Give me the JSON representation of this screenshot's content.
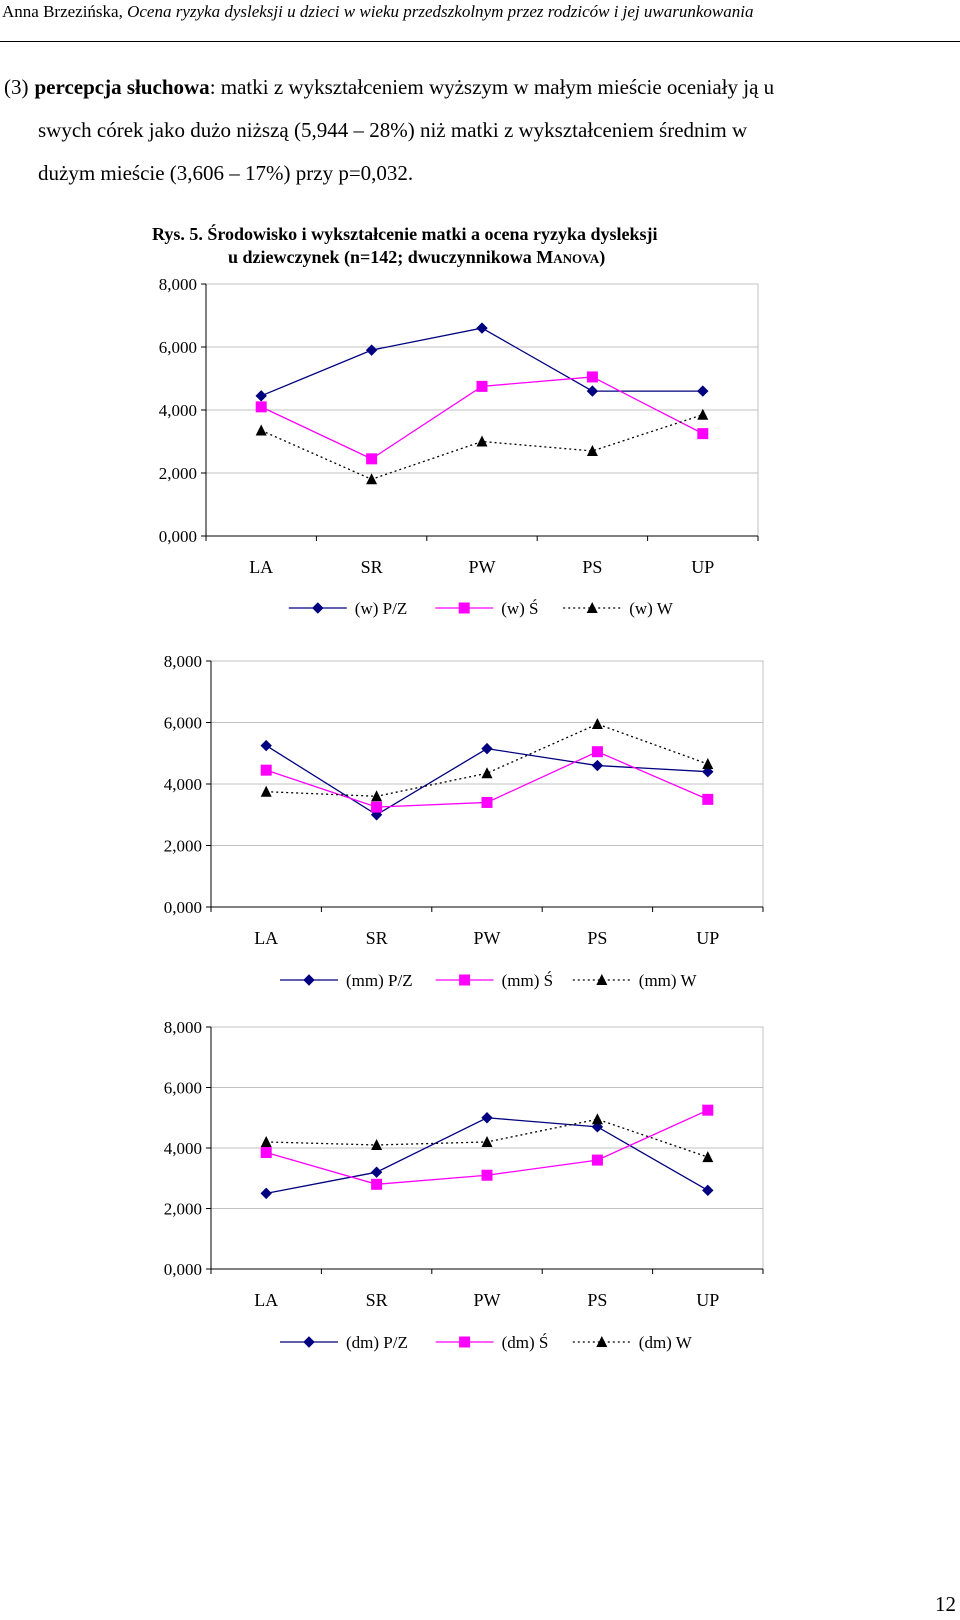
{
  "header": {
    "author": "Anna Brzezińska, ",
    "title": "Ocena ryzyka dysleksji u dzieci w wieku przedszkolnym przez rodziców i jej uwarunkowania"
  },
  "paragraph": {
    "number": "(3)",
    "term": "percepcja słuchowa",
    "line1_rest": ": matki z wykształceniem wyższym w małym mieście oceniały ją u",
    "line2": "swych córek jako dużo niższą (5,944 – 28%) niż matki z wykształceniem średnim w",
    "line3": "dużym mieście (3,606 – 17%) przy p=0,032."
  },
  "figure": {
    "label": "Rys. 5.",
    "caption_line1": "Środowisko i wykształcenie matki a ocena ryzyka dysleksji",
    "caption_line2_pre": "u dziewczynek (n=142; dwuczynnikowa M",
    "caption_line2_sc": "ANOVA",
    "caption_line2_post": ")"
  },
  "colors": {
    "series1": "#000080",
    "series2": "#ff00ff",
    "series3": "#000000",
    "grid": "#c0c0c0"
  },
  "chart_data": [
    {
      "type": "line",
      "categories": [
        "LA",
        "SR",
        "PW",
        "PS",
        "UP"
      ],
      "ylim": [
        0,
        8
      ],
      "yticks": [
        "0,000",
        "2,000",
        "4,000",
        "6,000",
        "8,000"
      ],
      "grid": true,
      "legend_position": "bottom",
      "series": [
        {
          "name": "(w) P/Z",
          "values": [
            4.45,
            5.9,
            6.6,
            4.6,
            4.6
          ],
          "marker": "diamond",
          "color": "#000080",
          "dash": "solid"
        },
        {
          "name": "(w) Ś",
          "values": [
            4.1,
            2.45,
            4.75,
            5.05,
            3.25
          ],
          "marker": "square",
          "color": "#ff00ff",
          "dash": "solid"
        },
        {
          "name": "(w) W",
          "values": [
            3.35,
            1.8,
            3.0,
            2.7,
            3.85
          ],
          "marker": "triangle",
          "color": "#000000",
          "dash": "dotted"
        }
      ]
    },
    {
      "type": "line",
      "categories": [
        "LA",
        "SR",
        "PW",
        "PS",
        "UP"
      ],
      "ylim": [
        0,
        8
      ],
      "yticks": [
        "0,000",
        "2,000",
        "4,000",
        "6,000",
        "8,000"
      ],
      "grid": true,
      "legend_position": "bottom",
      "series": [
        {
          "name": "(mm) P/Z",
          "values": [
            5.25,
            3.0,
            5.15,
            4.6,
            4.4
          ],
          "marker": "diamond",
          "color": "#000080",
          "dash": "solid"
        },
        {
          "name": "(mm) Ś",
          "values": [
            4.45,
            3.25,
            3.4,
            5.05,
            3.5
          ],
          "marker": "square",
          "color": "#ff00ff",
          "dash": "solid"
        },
        {
          "name": "(mm) W",
          "values": [
            3.75,
            3.6,
            4.35,
            5.95,
            4.65
          ],
          "marker": "triangle",
          "color": "#000000",
          "dash": "dotted"
        }
      ]
    },
    {
      "type": "line",
      "categories": [
        "LA",
        "SR",
        "PW",
        "PS",
        "UP"
      ],
      "ylim": [
        0,
        8
      ],
      "yticks": [
        "0,000",
        "2,000",
        "4,000",
        "6,000",
        "8,000"
      ],
      "grid": true,
      "legend_position": "bottom",
      "series": [
        {
          "name": "(dm) P/Z",
          "values": [
            2.5,
            3.2,
            5.0,
            4.7,
            2.6
          ],
          "marker": "diamond",
          "color": "#000080",
          "dash": "solid"
        },
        {
          "name": "(dm) Ś",
          "values": [
            3.85,
            2.8,
            3.1,
            3.6,
            5.25
          ],
          "marker": "square",
          "color": "#ff00ff",
          "dash": "solid"
        },
        {
          "name": "(dm) W",
          "values": [
            4.2,
            4.1,
            4.2,
            4.95,
            3.7
          ],
          "marker": "triangle",
          "color": "#000000",
          "dash": "dotted"
        }
      ]
    }
  ],
  "page_number": "12"
}
